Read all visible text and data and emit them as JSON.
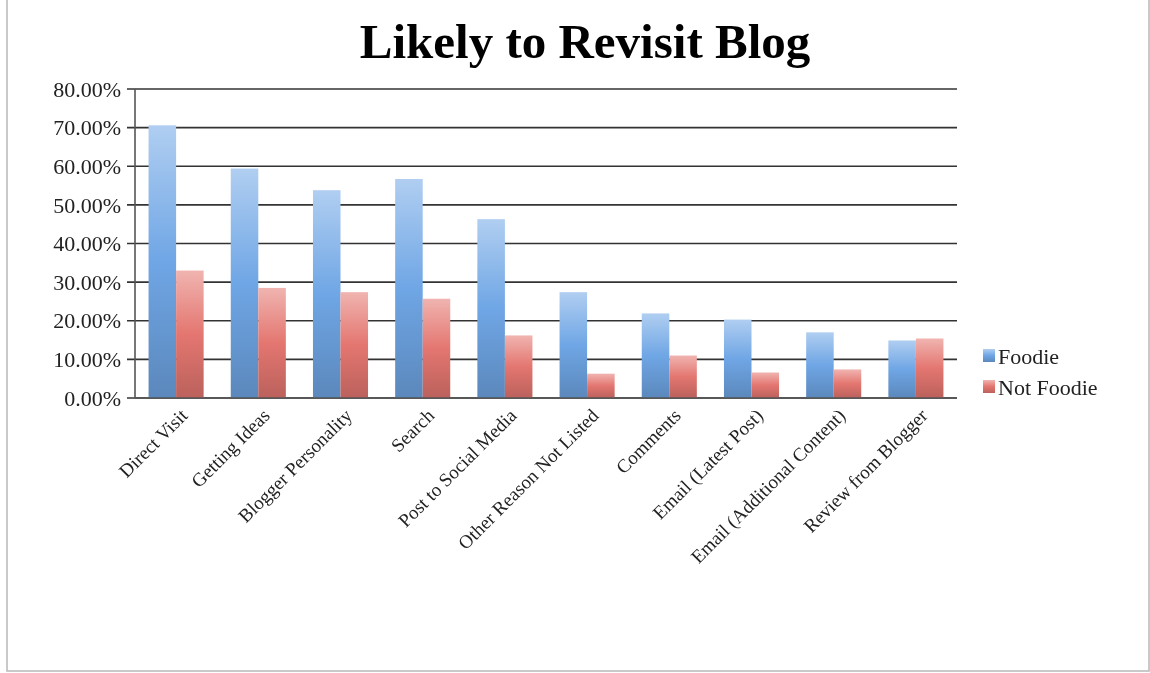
{
  "chart_data": {
    "type": "bar",
    "title": "Likely to Revisit Blog",
    "categories": [
      "Direct Visit",
      "Getting Ideas",
      "Blogger Personality",
      "Search",
      "Post to Social Media",
      "Other Reason Not Listed",
      "Comments",
      "Email (Latest Post)",
      "Email (Additional Content)",
      "Review from Blogger"
    ],
    "series": [
      {
        "name": "Foodie",
        "color": "#6fa6e5",
        "values": [
          70.6,
          59.4,
          53.8,
          56.7,
          46.3,
          27.4,
          21.9,
          20.3,
          17.0,
          14.9
        ]
      },
      {
        "name": "Not Foodie",
        "color": "#e47670",
        "values": [
          33.0,
          28.5,
          27.4,
          25.7,
          16.2,
          6.3,
          11.0,
          6.6,
          7.4,
          15.4
        ]
      }
    ],
    "ylim": [
      0,
      80
    ],
    "yticks": [
      {
        "value": 0,
        "label": "0.00%"
      },
      {
        "value": 10,
        "label": "10.00%"
      },
      {
        "value": 20,
        "label": "20.00%"
      },
      {
        "value": 30,
        "label": "30.00%"
      },
      {
        "value": 40,
        "label": "40.00%"
      },
      {
        "value": 50,
        "label": "50.00%"
      },
      {
        "value": 60,
        "label": "60.00%"
      },
      {
        "value": 70,
        "label": "70.00%"
      },
      {
        "value": 80,
        "label": "80.00%"
      }
    ],
    "grid": "y",
    "legend": "right"
  }
}
